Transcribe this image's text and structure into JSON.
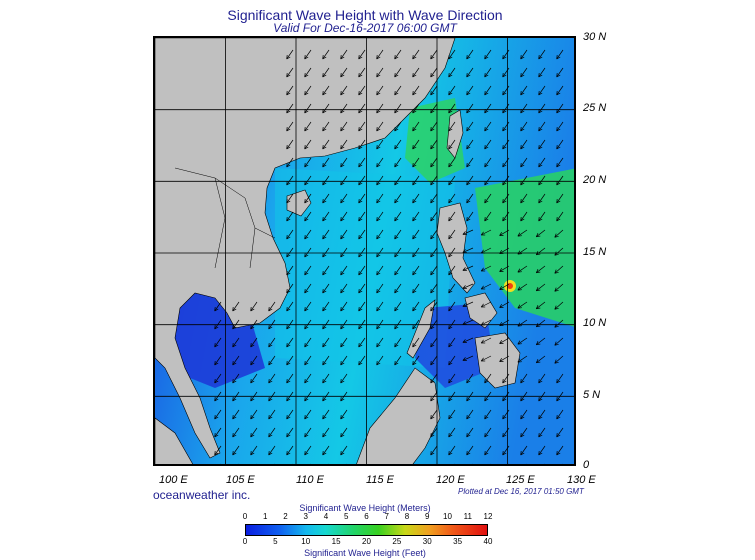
{
  "header": {
    "title": "Significant Wave Height with Wave Direction",
    "subtitle": "Valid For Dec-16-2017 06:00 GMT"
  },
  "map": {
    "lat_labels": [
      "30 N",
      "25 N",
      "20 N",
      "15 N",
      "10 N",
      "5 N",
      "0"
    ],
    "lon_labels": [
      "100 E",
      "105 E",
      "110 E",
      "115 E",
      "120 E",
      "125 E",
      "130 E"
    ],
    "land_color": "#c0c0c0",
    "ocean_low_color": "#1a3fe0",
    "ocean_mid_color": "#13c9e8",
    "ocean_high_color": "#22d45a"
  },
  "footer": {
    "brand": "oceanweather inc.",
    "plotted": "Plotted at Dec 16, 2017 01:50 GMT"
  },
  "colorbar": {
    "title_top": "Significant Wave Height (Meters)",
    "title_bottom": "Significant Wave Height (Feet)",
    "meters": [
      "0",
      "1",
      "2",
      "3",
      "4",
      "5",
      "6",
      "7",
      "8",
      "9",
      "10",
      "11",
      "12"
    ],
    "feet": [
      "0",
      "5",
      "10",
      "15",
      "20",
      "25",
      "30",
      "35",
      "40"
    ]
  }
}
